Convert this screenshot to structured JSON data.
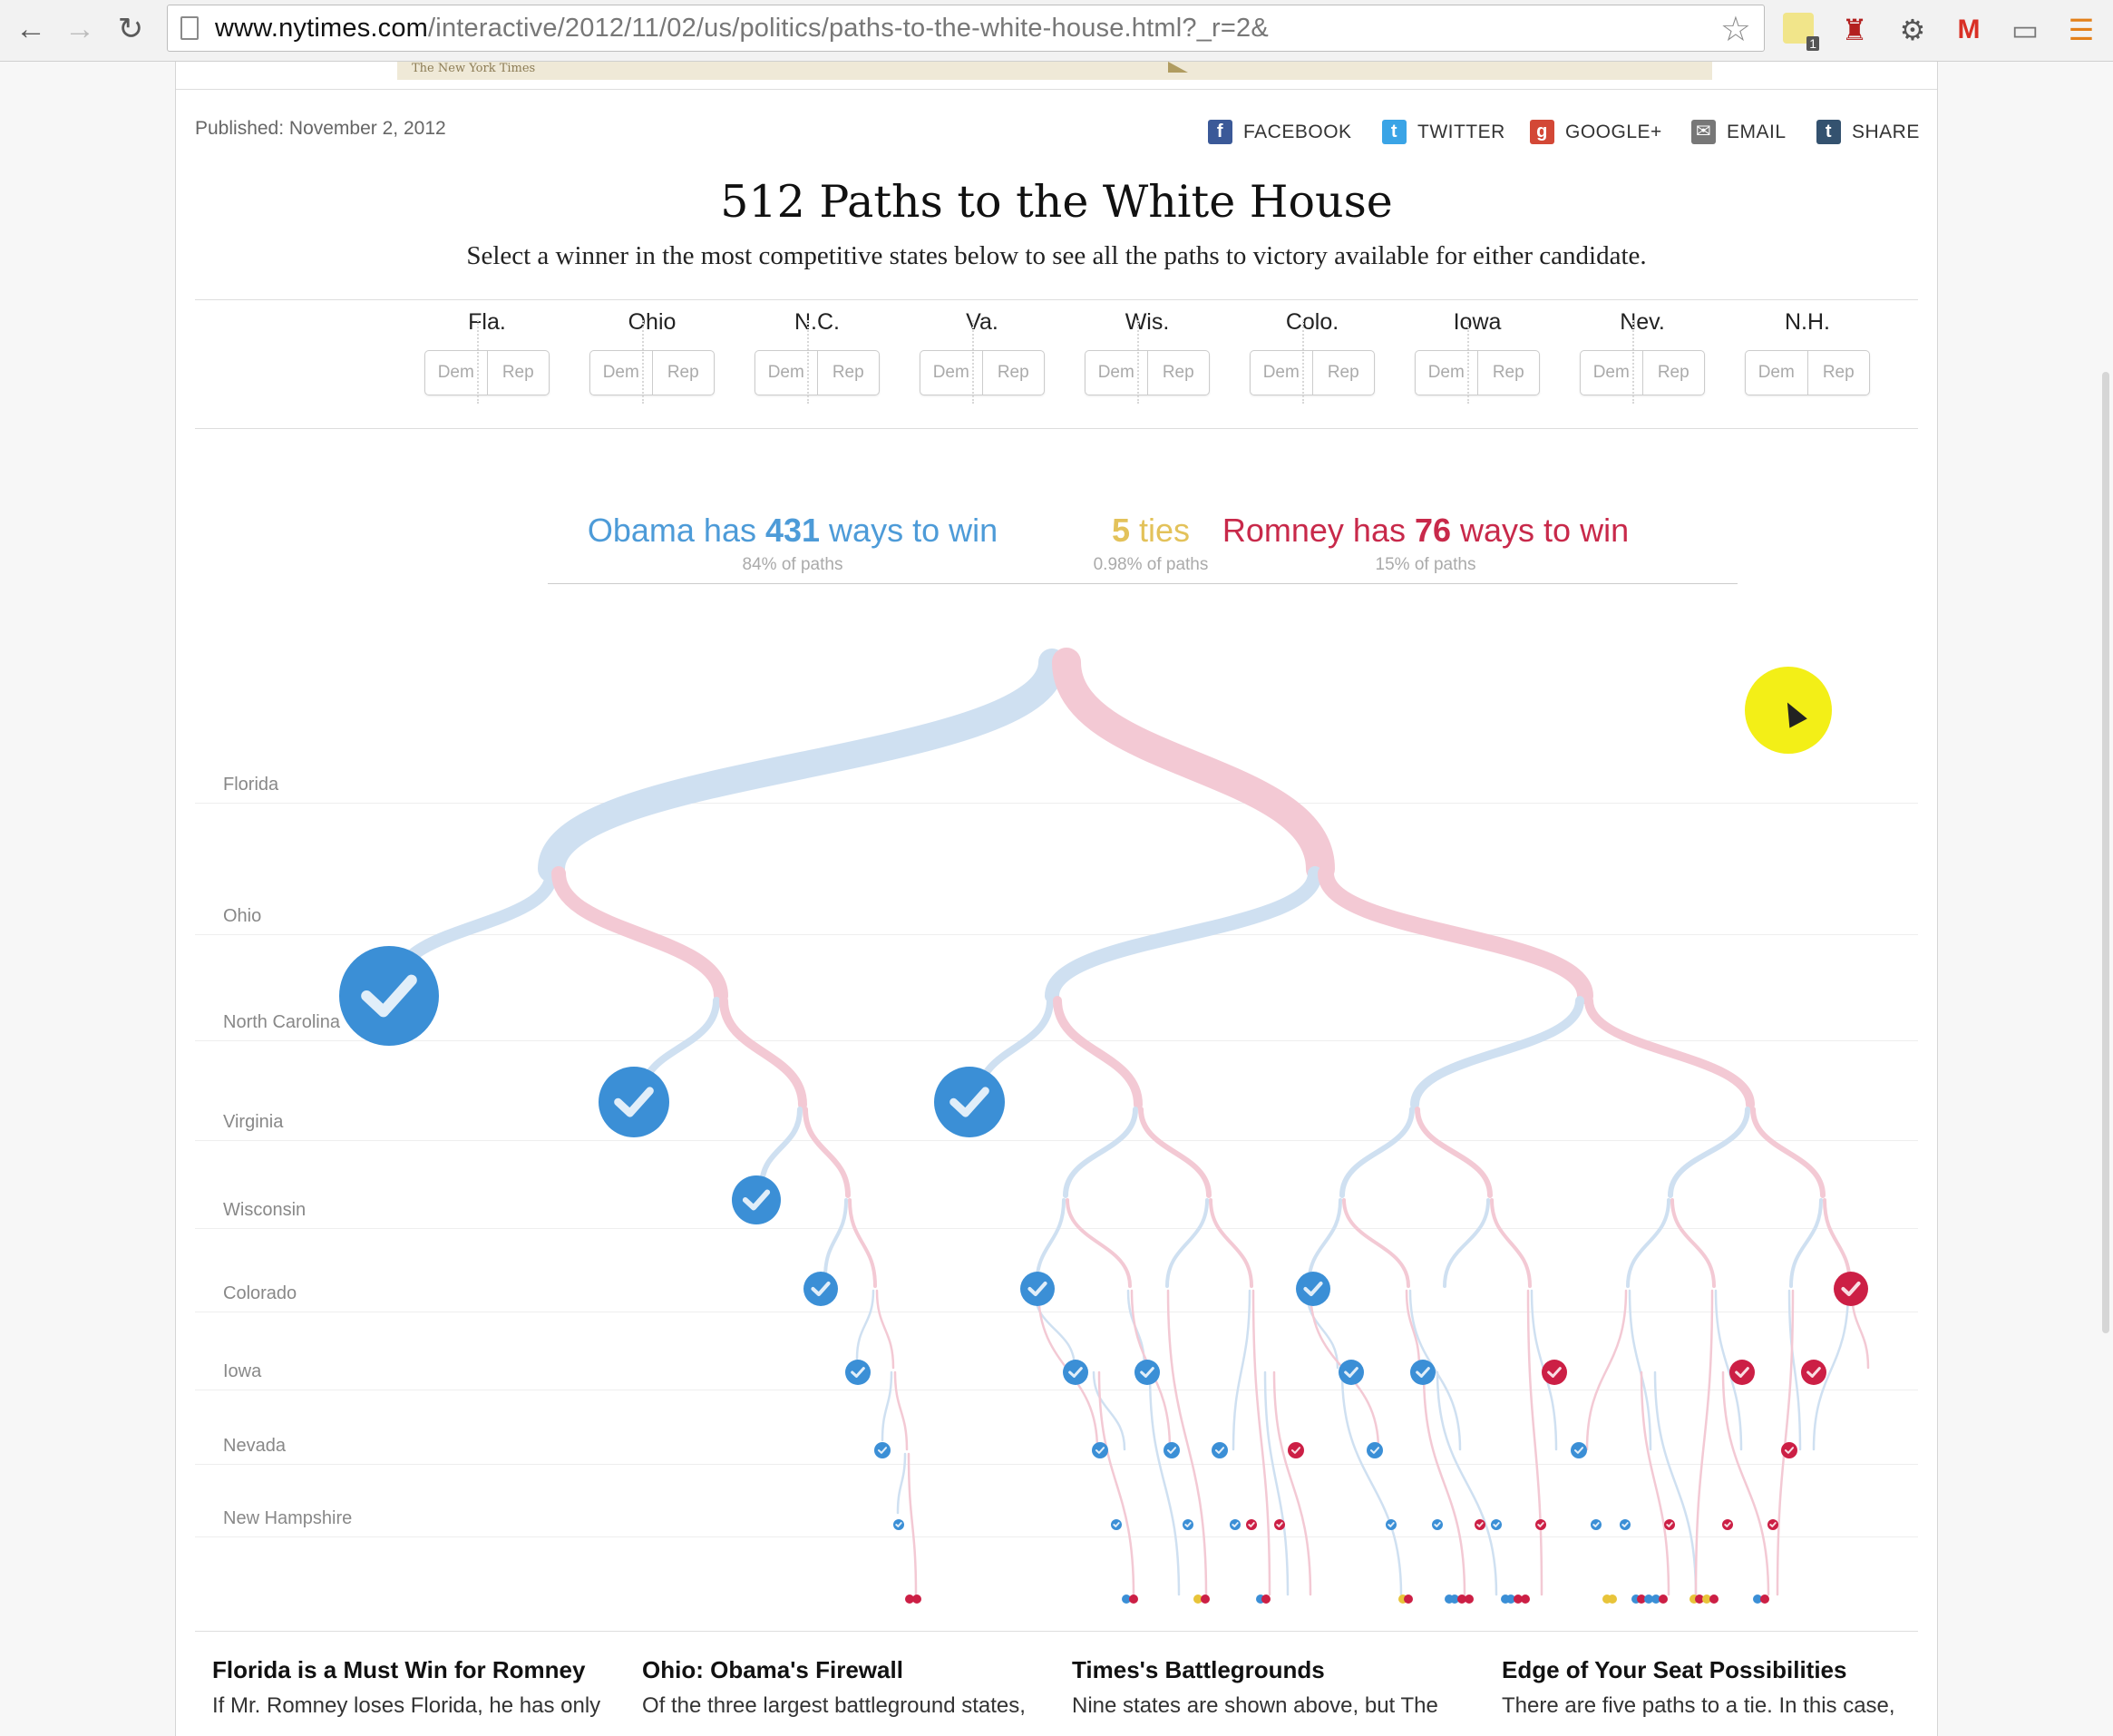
{
  "browser": {
    "url_host": "www.nytimes.com",
    "url_path": "/interactive/2012/11/02/us/politics/paths-to-the-white-house.html?_r=2&",
    "extension_badge": "1"
  },
  "banner": {
    "masthead": "The New York Times"
  },
  "published": "Published: November 2, 2012",
  "share": [
    {
      "label": "FACEBOOK",
      "icon": "facebook-icon",
      "glyph": "f",
      "color": "#3b5998"
    },
    {
      "label": "TWITTER",
      "icon": "twitter-icon",
      "glyph": "t",
      "color": "#3aa4e6"
    },
    {
      "label": "GOOGLE+",
      "icon": "google-plus-icon",
      "glyph": "g",
      "color": "#d34836"
    },
    {
      "label": "EMAIL",
      "icon": "email-icon",
      "glyph": "✉",
      "color": "#777777"
    },
    {
      "label": "SHARE",
      "icon": "tumblr-icon",
      "glyph": "t",
      "color": "#34526f"
    }
  ],
  "title": "512 Paths to the White House",
  "subtitle": "Select a winner in the most competitive states below to see all the paths to victory available for either candidate.",
  "states": [
    {
      "abbr": "Fla.",
      "dem": "Dem",
      "rep": "Rep"
    },
    {
      "abbr": "Ohio",
      "dem": "Dem",
      "rep": "Rep"
    },
    {
      "abbr": "N.C.",
      "dem": "Dem",
      "rep": "Rep"
    },
    {
      "abbr": "Va.",
      "dem": "Dem",
      "rep": "Rep"
    },
    {
      "abbr": "Wis.",
      "dem": "Dem",
      "rep": "Rep"
    },
    {
      "abbr": "Colo.",
      "dem": "Dem",
      "rep": "Rep"
    },
    {
      "abbr": "Iowa",
      "dem": "Dem",
      "rep": "Rep"
    },
    {
      "abbr": "Nev.",
      "dem": "Dem",
      "rep": "Rep"
    },
    {
      "abbr": "N.H.",
      "dem": "Dem",
      "rep": "Rep"
    }
  ],
  "summary": {
    "obama": {
      "pre": "Obama has ",
      "num": "431",
      "post": " ways to win",
      "pct": "84% of paths",
      "color": "#4d9bd8"
    },
    "ties": {
      "num": "5",
      "post": " ties",
      "pct": "0.98% of paths",
      "color": "#e3c25a"
    },
    "romney": {
      "pre": "Romney has ",
      "num": "76",
      "post": " ways to win",
      "pct": "15% of paths",
      "color": "#c8294a"
    }
  },
  "tree_rows": [
    "Florida",
    "Ohio",
    "North Carolina",
    "Virginia",
    "Wisconsin",
    "Colorado",
    "Iowa",
    "Nevada",
    "New Hampshire"
  ],
  "colors": {
    "dem": "#3b8fd6",
    "dem_path": "#cfe0f1",
    "rep": "#cc1f45",
    "rep_path": "#f3c9d4",
    "tie": "#e8c43a"
  },
  "articles": [
    {
      "head": "Florida is a Must Win for Romney",
      "text": "If Mr. Romney loses Florida, he has only"
    },
    {
      "head": "Ohio: Obama's Firewall",
      "text": "Of the three largest battleground states,"
    },
    {
      "head": "Times's Battlegrounds",
      "text": "Nine states are shown above, but The"
    },
    {
      "head": "Edge of Your Seat Possibilities",
      "text": "There are five paths to a tie. In this case,"
    }
  ]
}
